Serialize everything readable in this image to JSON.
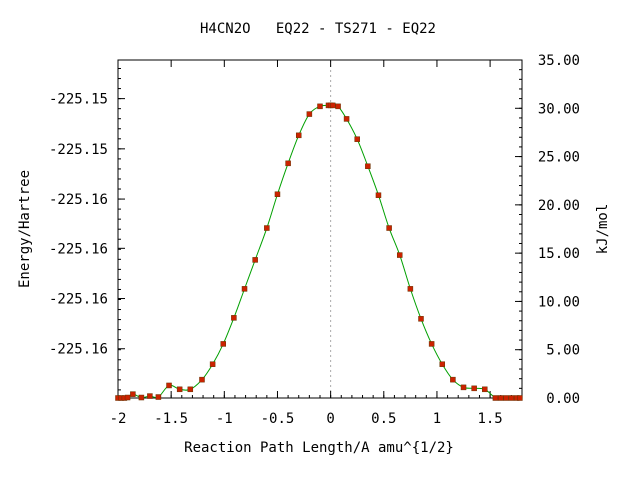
{
  "chart_data": {
    "type": "line",
    "title": "H4CN2O   EQ22 - TS271 - EQ22",
    "xlabel": "Reaction Path Length/A amu^{1/2}",
    "ylabel_left": "Energy/Hartree",
    "ylabel_right": "kJ/mol",
    "xlim": [
      -2.0,
      1.8
    ],
    "ylim_right": [
      0,
      35
    ],
    "x_ticks": [
      "-2",
      "-1.5",
      "-1",
      "-0.5",
      "0",
      "0.5",
      "1",
      "1.5"
    ],
    "x_tick_values": [
      -2,
      -1.5,
      -1,
      -0.5,
      0,
      0.5,
      1,
      1.5
    ],
    "y_left_ticks": [
      "-225.15",
      "-225.15",
      "-225.16",
      "-225.16",
      "-225.16",
      "-225.16"
    ],
    "y_left_tick_kj": [
      31.0,
      25.8,
      20.6,
      15.5,
      10.3,
      5.1
    ],
    "y_right_ticks": [
      "35.00",
      "30.00",
      "25.00",
      "20.00",
      "15.00",
      "10.00",
      "5.00",
      "0.00"
    ],
    "y_right_tick_values": [
      35,
      30,
      25,
      20,
      15,
      10,
      5,
      0
    ],
    "ts_marker_x": 0,
    "series": [
      {
        "color": "#00a000",
        "marker_color": "#cc2200",
        "x": [
          -2.0,
          -1.97,
          -1.94,
          -1.91,
          -1.86,
          -1.78,
          -1.7,
          -1.62,
          -1.52,
          -1.42,
          -1.32,
          -1.21,
          -1.11,
          -1.01,
          -0.91,
          -0.81,
          -0.71,
          -0.6,
          -0.5,
          -0.4,
          -0.3,
          -0.2,
          -0.1,
          -0.02,
          0.0,
          0.02,
          0.07,
          0.15,
          0.25,
          0.35,
          0.45,
          0.55,
          0.65,
          0.75,
          0.85,
          0.95,
          1.05,
          1.15,
          1.25,
          1.35,
          1.45,
          1.55,
          1.6,
          1.65,
          1.7,
          1.75,
          1.78
        ],
        "y": [
          0.0,
          0.0,
          0.0,
          0.05,
          0.4,
          0.05,
          0.2,
          0.1,
          1.3,
          0.9,
          0.9,
          1.9,
          3.5,
          5.6,
          8.3,
          11.3,
          14.3,
          17.6,
          21.1,
          24.3,
          27.2,
          29.4,
          30.2,
          30.3,
          30.3,
          30.3,
          30.2,
          28.9,
          26.8,
          24.0,
          21.0,
          17.6,
          14.8,
          11.3,
          8.2,
          5.6,
          3.5,
          1.9,
          1.1,
          1.0,
          0.9,
          0.0,
          0.0,
          0.0,
          0.0,
          0.0,
          0.0
        ]
      }
    ]
  }
}
